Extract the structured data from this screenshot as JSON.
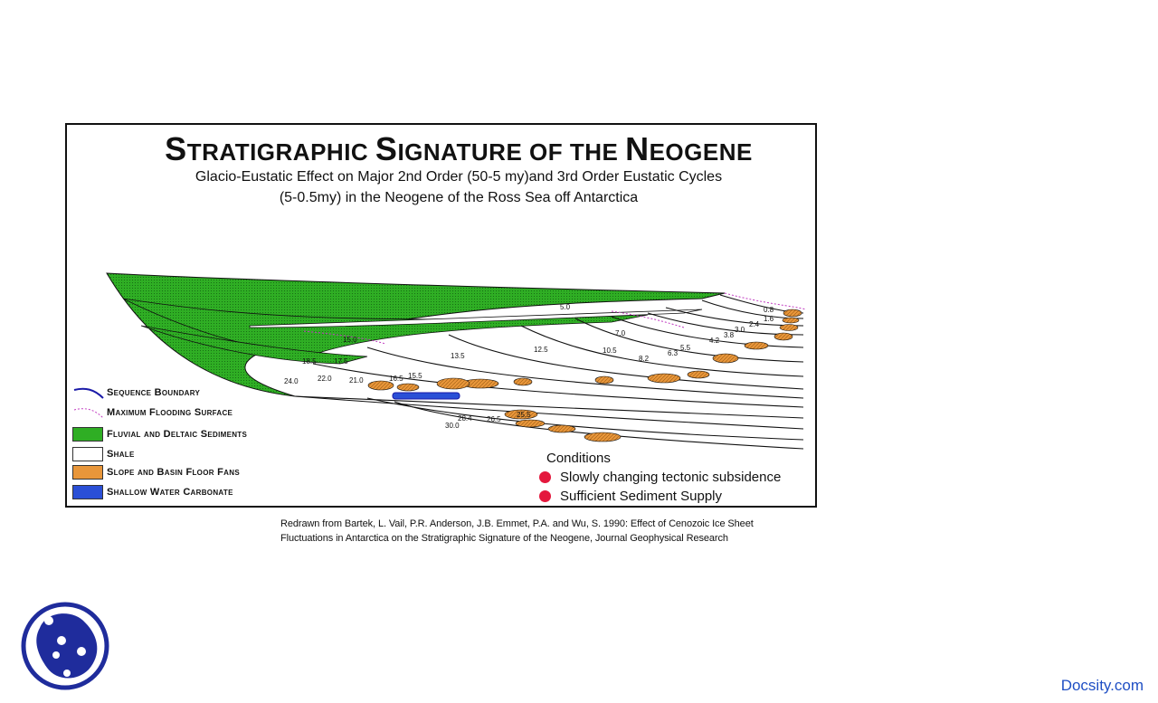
{
  "title": {
    "s": "S",
    "part1": "TRATIGRAPHIC ",
    "s2": "S",
    "part2": "IGNATURE OF THE ",
    "n": "N",
    "part3": "EOGENE"
  },
  "subtitle": {
    "line1": "Glacio-Eustatic Effect on Major 2nd Order (50-5 my)and 3rd Order Eustatic Cycles",
    "line2": "(5-0.5my) in the Neogene of the Ross Sea off Antarctica"
  },
  "age_labels": [
    "0.8",
    "1.6",
    "2.4",
    "3.0",
    "3.8",
    "4.2",
    "5.0",
    "5.5",
    "6.3",
    "7.0",
    "8.2",
    "10.5",
    "12.5",
    "13.5",
    "15.0",
    "15.5",
    "16.5",
    "17.5",
    "18.5",
    "21.0",
    "22.0",
    "24.0",
    "25.5",
    "26.5",
    "28.4",
    "30.0"
  ],
  "legend": [
    {
      "label": "Sequence Boundary",
      "kind": "line",
      "color": "#1a1aa8"
    },
    {
      "label": "Maximum Flooding Surface",
      "kind": "dotted",
      "color": "#c03ac0"
    },
    {
      "label": "Fluvial and Deltaic Sediments",
      "kind": "fill",
      "color": "#2fae24"
    },
    {
      "label": "Shale",
      "kind": "fill",
      "color": "#ffffff"
    },
    {
      "label": "Slope and Basin Floor Fans",
      "kind": "fill",
      "color": "#e8963a"
    },
    {
      "label": "Shallow Water Carbonate",
      "kind": "fill",
      "color": "#2a4fd6"
    }
  ],
  "conditions": {
    "heading": "Conditions",
    "items": [
      "Slowly changing tectonic subsidence",
      "Sufficient Sediment Supply"
    ],
    "bullet_color": "#e4183d"
  },
  "caption": {
    "line1": "Redrawn from Bartek, L. Vail, P.R. Anderson, J.B. Emmet, P.A. and Wu, S. 1990: Effect of Cenozoic Ice Sheet",
    "line2": "Fluctuations in Antarctica on the Stratigraphic Signature of the Neogene, Journal Geophysical Research"
  },
  "brand": "Docsity.com"
}
